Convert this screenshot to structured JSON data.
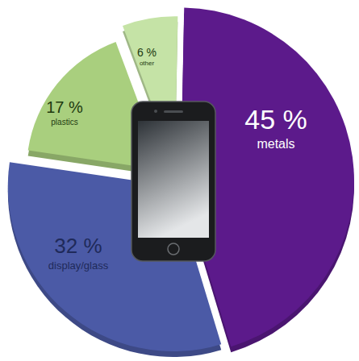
{
  "chart_data": {
    "type": "pie",
    "categories": [
      "metals",
      "display/glass",
      "plastics",
      "other"
    ],
    "values": [
      45,
      32,
      17,
      6
    ],
    "value_labels": [
      "45 %",
      "32 %",
      "17 %",
      "6 %"
    ],
    "colors": [
      "#5c1a8b",
      "#4b5aa6",
      "#a9cf7e",
      "#c5e3a6"
    ],
    "data_labels": true
  }
}
